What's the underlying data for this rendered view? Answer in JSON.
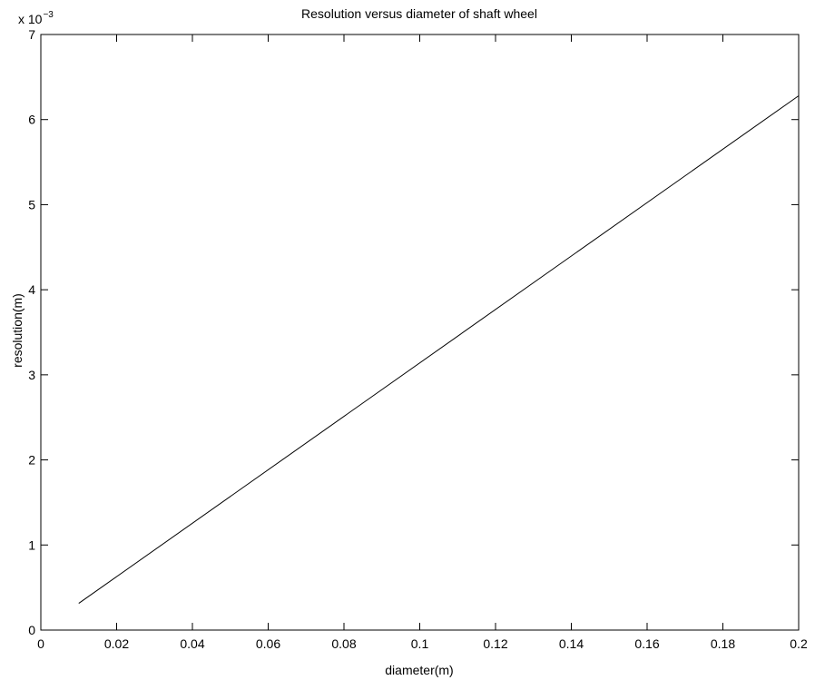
{
  "chart_data": {
    "type": "line",
    "title": "Resolution versus diameter of shaft wheel",
    "xlabel": "diameter(m)",
    "ylabel": "resolution(m)",
    "xlim": [
      0,
      0.2
    ],
    "ylim": [
      0,
      7
    ],
    "y_exponent_label": "x 10",
    "y_exponent_power": "−3",
    "x_ticks": [
      0,
      0.02,
      0.04,
      0.06,
      0.08,
      0.1,
      0.12,
      0.14,
      0.16,
      0.18,
      0.2
    ],
    "x_tick_labels": [
      "0",
      "0.02",
      "0.04",
      "0.06",
      "0.08",
      "0.1",
      "0.12",
      "0.14",
      "0.16",
      "0.18",
      "0.2"
    ],
    "y_ticks": [
      0,
      1,
      2,
      3,
      4,
      5,
      6,
      7
    ],
    "y_tick_labels": [
      "0",
      "1",
      "2",
      "3",
      "4",
      "5",
      "6",
      "7"
    ],
    "grid": false,
    "series": [
      {
        "x": [
          0.01,
          0.2
        ],
        "y": [
          0.314,
          6.28
        ],
        "color": "#000000"
      }
    ]
  }
}
